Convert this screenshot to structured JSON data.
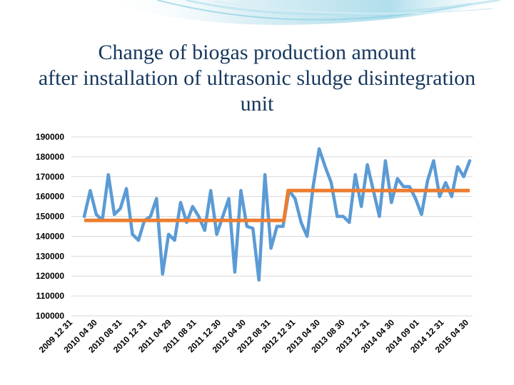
{
  "title_lines": [
    "Change of biogas production amount",
    "after installation of ultrasonic sludge disintegration",
    "unit"
  ],
  "chart_data": {
    "type": "line",
    "title": "Change of biogas production amount after installation of ultrasonic sludge disintegration unit",
    "ylim": [
      100000,
      190000
    ],
    "y_ticks": [
      100000,
      110000,
      120000,
      130000,
      140000,
      150000,
      160000,
      170000,
      180000,
      190000
    ],
    "y_tick_labels": [
      "100000",
      "110000",
      "120000",
      "130000",
      "140000",
      "150000",
      "160000",
      "170000",
      "180000",
      "190000"
    ],
    "x_tick_labels": [
      "2009 12 31",
      "2010 04 30",
      "2010 08 31",
      "2010 12 31",
      "2011 04 29",
      "2011 08 31",
      "2011 12 30",
      "2012 04 30",
      "2012 08 31",
      "2012 12 31",
      "2013 04 30",
      "2013 08 30",
      "2013 12 31",
      "2014 04 30",
      "2014 09 01",
      "2014 12 31",
      "2015 04 30"
    ],
    "grid": true,
    "series": [
      {
        "type": "line",
        "color": "#5b9bd5",
        "values": [
          150000,
          163000,
          151000,
          148000,
          171000,
          151000,
          154000,
          164000,
          141000,
          138000,
          148000,
          150000,
          159000,
          121000,
          141000,
          138000,
          157000,
          147000,
          155000,
          150000,
          143000,
          163000,
          141000,
          150000,
          159000,
          122000,
          163000,
          145000,
          144000,
          118000,
          171000,
          134000,
          145000,
          145000,
          163000,
          159000,
          147000,
          140000,
          165000,
          184000,
          175000,
          167000,
          150000,
          150000,
          147000,
          171000,
          155000,
          176000,
          163000,
          150000,
          178000,
          157000,
          169000,
          165000,
          165000,
          159000,
          151000,
          168000,
          178000,
          160000,
          167000,
          160000,
          175000,
          170000,
          178000
        ]
      },
      {
        "type": "step",
        "color": "#ed7d31",
        "values": [
          148000,
          148000,
          148000,
          148000,
          148000,
          148000,
          148000,
          148000,
          148000,
          148000,
          148000,
          148000,
          148000,
          148000,
          148000,
          148000,
          148000,
          148000,
          148000,
          148000,
          148000,
          148000,
          148000,
          148000,
          148000,
          148000,
          148000,
          148000,
          148000,
          148000,
          148000,
          148000,
          148000,
          148000,
          163000,
          163000,
          163000,
          163000,
          163000,
          163000,
          163000,
          163000,
          163000,
          163000,
          163000,
          163000,
          163000,
          163000,
          163000,
          163000,
          163000,
          163000,
          163000,
          163000,
          163000,
          163000,
          163000,
          163000,
          163000,
          163000,
          163000,
          163000,
          163000,
          163000,
          163000
        ]
      }
    ]
  }
}
